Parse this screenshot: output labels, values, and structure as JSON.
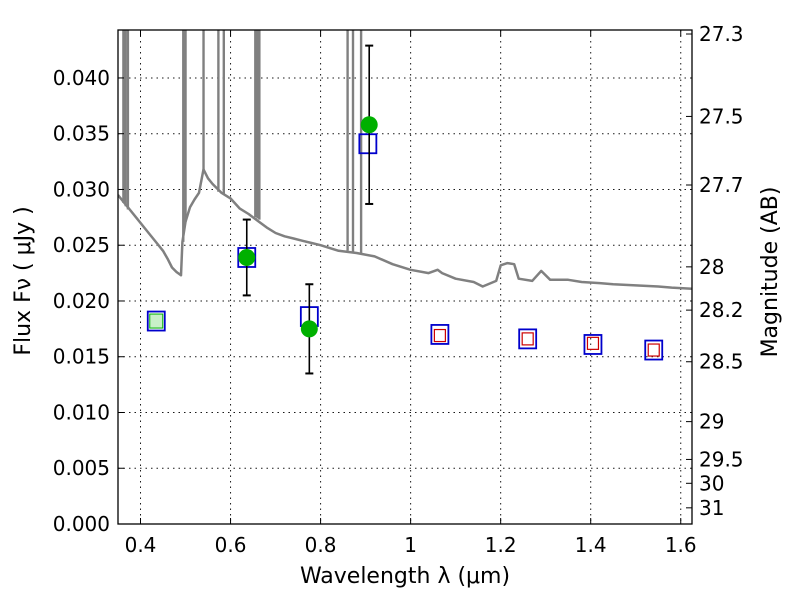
{
  "chart_data": {
    "type": "scatter",
    "title": "",
    "xlabel": "Wavelength  λ (μm)",
    "ylabel": "Flux  Fν  ( μJy )",
    "ylabel_right": "Magnitude (AB)",
    "xlim": [
      0.35,
      1.625
    ],
    "ylim": [
      0.0,
      0.0443
    ],
    "grid": true,
    "x_ticks": [
      0.4,
      0.6,
      0.8,
      1.0,
      1.2,
      1.4,
      1.6
    ],
    "x_tick_labels": [
      "0.4",
      "0.6",
      "0.8",
      "1",
      "1.2",
      "1.4",
      "1.6"
    ],
    "y_ticks": [
      0.0,
      0.005,
      0.01,
      0.015,
      0.02,
      0.025,
      0.03,
      0.035,
      0.04
    ],
    "y_tick_labels": [
      "0.000",
      "0.005",
      "0.010",
      "0.015",
      "0.020",
      "0.025",
      "0.030",
      "0.035",
      "0.040"
    ],
    "right_ticks": [
      {
        "label": "27.3",
        "flux": 0.04394
      },
      {
        "label": "27.5",
        "flux": 0.03655
      },
      {
        "label": "27.7",
        "flux": 0.0304
      },
      {
        "label": "28",
        "flux": 0.02306
      },
      {
        "label": "28.2",
        "flux": 0.01918
      },
      {
        "label": "28.5",
        "flux": 0.01455
      },
      {
        "label": "29",
        "flux": 0.00918
      },
      {
        "label": "29.5",
        "flux": 0.00579
      },
      {
        "label": "30",
        "flux": 0.00365
      },
      {
        "label": "31",
        "flux": 0.00145
      }
    ],
    "series": [
      {
        "kind": "sed_model",
        "color": "#808080",
        "points": [
          [
            0.35,
            0.0295
          ],
          [
            0.37,
            0.0285
          ],
          [
            0.39,
            0.0275
          ],
          [
            0.41,
            0.0265
          ],
          [
            0.43,
            0.0255
          ],
          [
            0.45,
            0.0245
          ],
          [
            0.46,
            0.0238
          ],
          [
            0.47,
            0.023
          ],
          [
            0.48,
            0.0226
          ],
          [
            0.49,
            0.0223
          ],
          [
            0.493,
            0.0253
          ],
          [
            0.5,
            0.0271
          ],
          [
            0.51,
            0.0284
          ],
          [
            0.52,
            0.0291
          ],
          [
            0.53,
            0.0297
          ],
          [
            0.54,
            0.0318
          ],
          [
            0.55,
            0.031
          ],
          [
            0.56,
            0.0305
          ],
          [
            0.58,
            0.0297
          ],
          [
            0.6,
            0.0292
          ],
          [
            0.62,
            0.0283
          ],
          [
            0.64,
            0.0278
          ],
          [
            0.66,
            0.0272
          ],
          [
            0.68,
            0.0266
          ],
          [
            0.7,
            0.0261
          ],
          [
            0.72,
            0.0258
          ],
          [
            0.74,
            0.0256
          ],
          [
            0.76,
            0.0254
          ],
          [
            0.78,
            0.0252
          ],
          [
            0.8,
            0.025
          ],
          [
            0.84,
            0.0245
          ],
          [
            0.88,
            0.0243
          ],
          [
            0.92,
            0.024
          ],
          [
            0.96,
            0.0233
          ],
          [
            1.0,
            0.0228
          ],
          [
            1.04,
            0.0225
          ],
          [
            1.06,
            0.0228
          ],
          [
            1.07,
            0.0225
          ],
          [
            1.1,
            0.022
          ],
          [
            1.14,
            0.0217
          ],
          [
            1.16,
            0.0213
          ],
          [
            1.19,
            0.0218
          ],
          [
            1.2,
            0.0232
          ],
          [
            1.215,
            0.0234
          ],
          [
            1.23,
            0.0233
          ],
          [
            1.24,
            0.022
          ],
          [
            1.27,
            0.0218
          ],
          [
            1.29,
            0.0227
          ],
          [
            1.31,
            0.0219
          ],
          [
            1.35,
            0.0219
          ],
          [
            1.38,
            0.0217
          ],
          [
            1.42,
            0.0216
          ],
          [
            1.45,
            0.0215
          ],
          [
            1.5,
            0.0214
          ],
          [
            1.55,
            0.0213
          ],
          [
            1.58,
            0.0212
          ],
          [
            1.625,
            0.0211
          ]
        ]
      },
      {
        "kind": "emission_spikes",
        "color": "#808080",
        "points": [
          [
            0.362,
            0.0288
          ],
          [
            0.367,
            0.0285
          ],
          [
            0.372,
            0.0282
          ],
          [
            0.495,
            0.0253
          ],
          [
            0.5,
            0.0271
          ],
          [
            0.54,
            0.0318
          ],
          [
            0.573,
            0.0298
          ],
          [
            0.585,
            0.0295
          ],
          [
            0.655,
            0.0275
          ],
          [
            0.66,
            0.0274
          ],
          [
            0.664,
            0.0273
          ],
          [
            0.86,
            0.0245
          ],
          [
            0.872,
            0.0244
          ],
          [
            0.89,
            0.0243
          ]
        ]
      },
      {
        "kind": "photometry_model",
        "marker": "open-square",
        "color": "#0000cc",
        "points": [
          [
            0.435,
            0.0182
          ],
          [
            0.636,
            0.0239
          ],
          [
            0.775,
            0.0186
          ],
          [
            0.905,
            0.0341
          ],
          [
            1.065,
            0.017
          ],
          [
            1.26,
            0.0166
          ],
          [
            1.405,
            0.0161
          ],
          [
            1.54,
            0.0156
          ]
        ]
      },
      {
        "kind": "photometry_upper",
        "marker": "small-square",
        "color": "#cc0000",
        "points": [
          [
            1.065,
            0.0169
          ],
          [
            1.26,
            0.0166
          ],
          [
            1.405,
            0.0162
          ],
          [
            1.54,
            0.0156
          ]
        ]
      },
      {
        "kind": "photometry_observed",
        "marker": "circle",
        "color": "#00b000",
        "points": [
          {
            "x": 0.435,
            "y": 0.0182,
            "err": 0
          },
          {
            "x": 0.636,
            "y": 0.0239,
            "err": 0.0034
          },
          {
            "x": 0.775,
            "y": 0.0175,
            "err": 0.004
          },
          {
            "x": 0.908,
            "y": 0.0358,
            "err": 0.0071
          }
        ]
      }
    ]
  }
}
